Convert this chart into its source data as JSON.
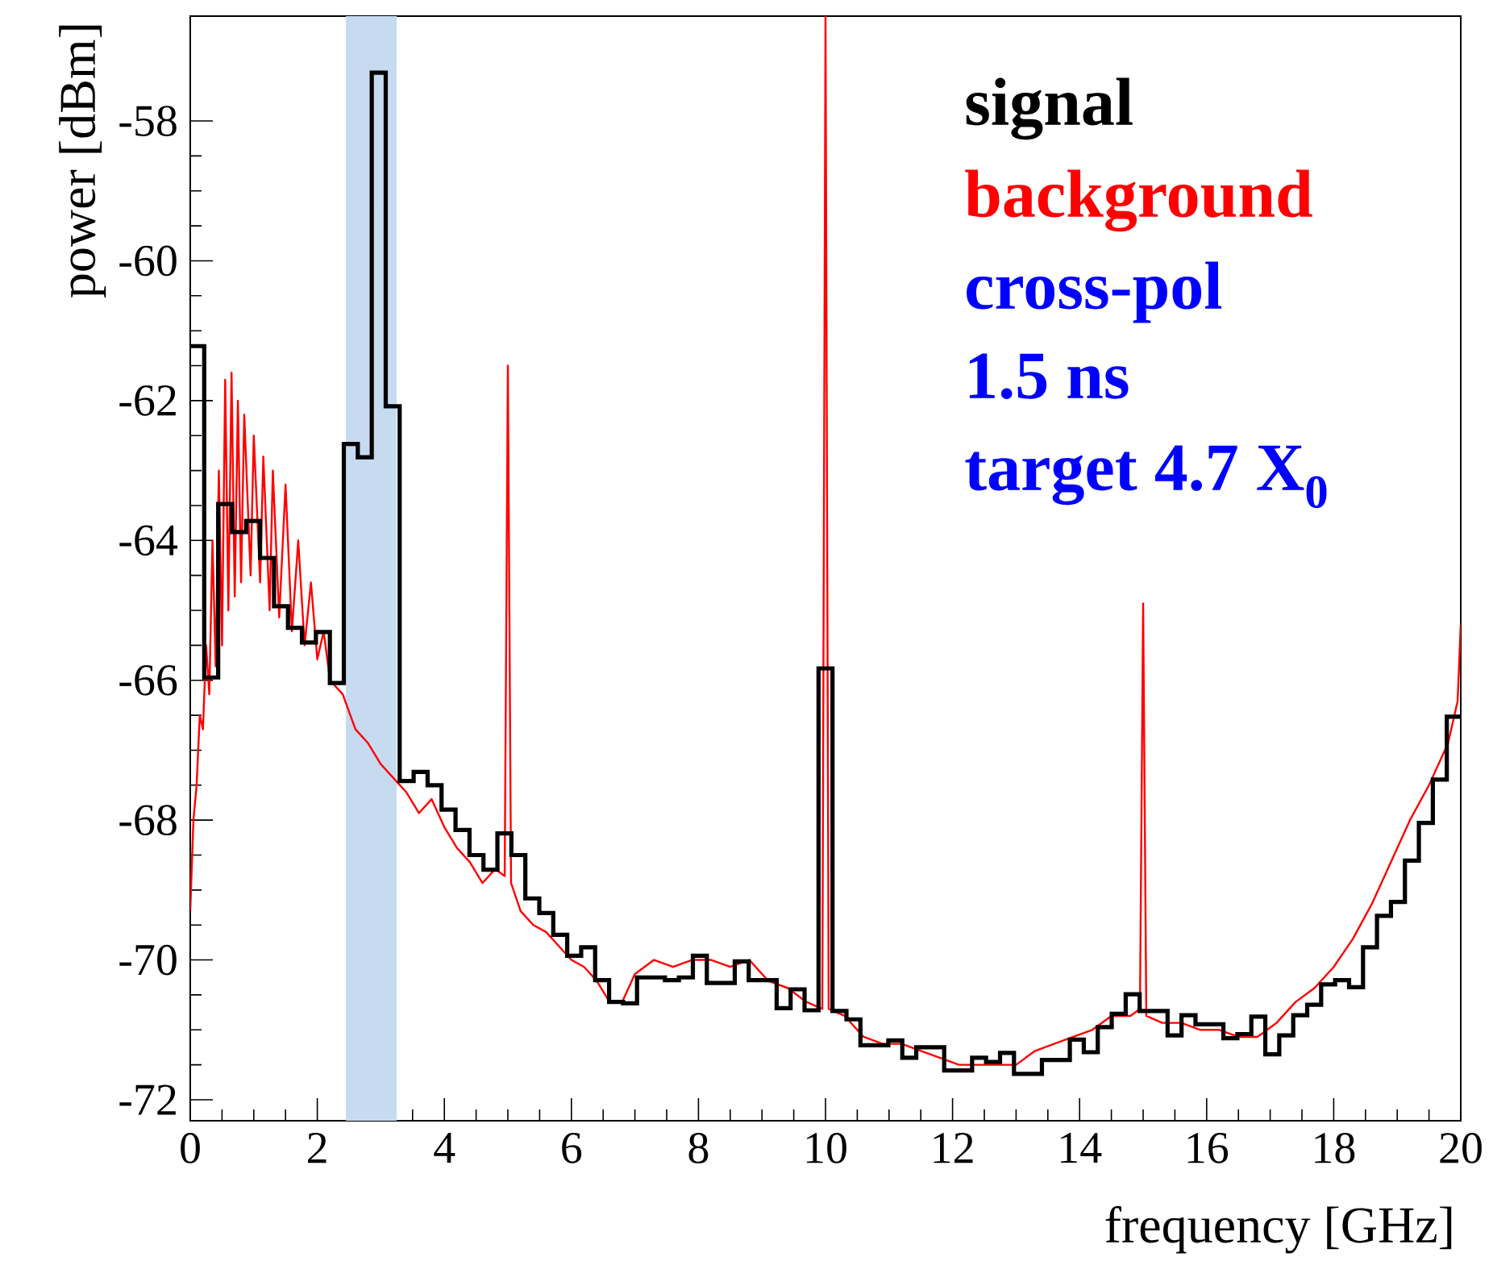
{
  "chart_data": {
    "type": "line",
    "xlabel": "frequency [GHz]",
    "ylabel": "power [dBm]",
    "xlim": [
      0,
      20
    ],
    "ylim": [
      -72.3,
      -56.5
    ],
    "xticks": [
      0,
      2,
      4,
      6,
      8,
      10,
      12,
      14,
      16,
      18,
      20
    ],
    "yticks": [
      -72,
      -70,
      -68,
      -66,
      -64,
      -62,
      -60,
      -58
    ],
    "legend": "top right",
    "bands": [
      {
        "axis": "x",
        "from": 2.45,
        "to": 3.25,
        "color": "#c6dbf0"
      }
    ],
    "annotations": [
      "cross-pol",
      "1.5 ns",
      "target 4.7 X$_{0}$"
    ],
    "series": [
      {
        "name": "signal",
        "type": "histogram",
        "color": "#000000",
        "bins": [
          0,
          0.2198,
          0.4396,
          0.6593,
          0.8791,
          1.0989,
          1.3187,
          1.5385,
          1.7582,
          1.978,
          2.1978,
          2.4176,
          2.6374,
          2.8571,
          3.0769,
          3.2967,
          3.5165,
          3.7363,
          3.956,
          4.1758,
          4.3956,
          4.6154,
          4.8352,
          5.0549,
          5.2747,
          5.4945,
          5.7143,
          5.9341,
          6.1538,
          6.3736,
          6.5934,
          6.8132,
          7.033,
          7.2527,
          7.4725,
          7.6923,
          7.9121,
          8.1319,
          8.3516,
          8.5714,
          8.7912,
          9.011,
          9.2308,
          9.4505,
          9.6703,
          9.8901,
          10.1099,
          10.3297,
          10.5495,
          10.7692,
          10.989,
          11.2088,
          11.4286,
          11.6484,
          11.8681,
          12.0879,
          12.3077,
          12.5275,
          12.7473,
          12.967,
          13.1868,
          13.4066,
          13.6264,
          13.8462,
          14.0659,
          14.2857,
          14.5055,
          14.7253,
          14.9451,
          15.1648,
          15.3846,
          15.6044,
          15.8242,
          16.044,
          16.2637,
          16.4835,
          16.7033,
          16.9231,
          17.1429,
          17.3626,
          17.5824,
          17.8022,
          18.022,
          18.2418,
          18.4615,
          18.6813,
          18.9011,
          19.1209,
          19.3407,
          19.5604,
          19.7802,
          20
        ],
        "values": [
          -61.22,
          -65.96,
          -63.48,
          -63.88,
          -63.72,
          -64.25,
          -64.94,
          -65.25,
          -65.46,
          -65.31,
          -66.04,
          -62.62,
          -62.81,
          -57.31,
          -62.08,
          -67.44,
          -67.31,
          -67.5,
          -67.85,
          -68.14,
          -68.5,
          -68.71,
          -68.19,
          -68.5,
          -69.12,
          -69.33,
          -69.64,
          -69.94,
          -69.82,
          -70.29,
          -70.6,
          -70.62,
          -70.25,
          -70.25,
          -70.29,
          -70.25,
          -69.94,
          -70.33,
          -70.33,
          -70.02,
          -70.29,
          -70.29,
          -70.69,
          -70.42,
          -70.72,
          -65.83,
          -70.73,
          -70.85,
          -71.22,
          -71.22,
          -71.15,
          -71.4,
          -71.25,
          -71.25,
          -71.58,
          -71.58,
          -71.4,
          -71.46,
          -71.33,
          -71.63,
          -71.63,
          -71.43,
          -71.43,
          -71.14,
          -71.32,
          -70.96,
          -70.77,
          -70.49,
          -70.73,
          -70.73,
          -71.08,
          -70.79,
          -70.92,
          -70.92,
          -71.12,
          -71.06,
          -70.81,
          -71.35,
          -71.08,
          -70.79,
          -70.64,
          -70.35,
          -70.29,
          -70.39,
          -69.82,
          -69.37,
          -69.17,
          -68.58,
          -68.04,
          -67.42,
          -66.52
        ]
      },
      {
        "name": "background",
        "color": "#ff0000",
        "x": [
          0.0,
          0.05,
          0.1,
          0.15,
          0.2,
          0.25,
          0.3,
          0.35,
          0.4,
          0.45,
          0.5,
          0.55,
          0.6,
          0.65,
          0.7,
          0.75,
          0.8,
          0.85,
          0.95,
          1.0,
          1.1,
          1.15,
          1.25,
          1.3,
          1.4,
          1.5,
          1.6,
          1.7,
          1.8,
          1.9,
          2.0,
          2.1,
          2.2,
          2.4,
          2.6,
          2.8,
          3.0,
          3.2,
          3.4,
          3.6,
          3.8,
          4.0,
          4.2,
          4.4,
          4.6,
          4.8,
          4.95,
          5.0,
          5.05,
          5.2,
          5.4,
          5.6,
          5.8,
          6.0,
          6.2,
          6.4,
          6.6,
          6.8,
          7.0,
          7.3,
          7.6,
          7.9,
          8.2,
          8.5,
          8.8,
          9.1,
          9.4,
          9.7,
          9.95,
          10.0,
          10.05,
          10.3,
          10.6,
          10.9,
          11.2,
          11.5,
          11.8,
          12.1,
          12.4,
          12.7,
          13.0,
          13.3,
          13.6,
          13.9,
          14.2,
          14.5,
          14.8,
          14.95,
          15.0,
          15.05,
          15.3,
          15.6,
          15.9,
          16.2,
          16.5,
          16.8,
          17.1,
          17.4,
          17.7,
          18.0,
          18.3,
          18.6,
          18.9,
          19.2,
          19.5,
          19.8,
          19.95,
          20.0
        ],
        "values": [
          -69.3,
          -68.0,
          -67.5,
          -66.5,
          -66.7,
          -65.5,
          -66.2,
          -64.0,
          -65.8,
          -63.0,
          -65.5,
          -61.7,
          -65.0,
          -61.6,
          -64.8,
          -62.0,
          -64.6,
          -62.2,
          -64.5,
          -62.5,
          -64.6,
          -62.8,
          -65.0,
          -63.0,
          -65.1,
          -63.2,
          -65.3,
          -64.0,
          -65.5,
          -64.6,
          -65.7,
          -65.3,
          -66.0,
          -66.2,
          -66.7,
          -66.9,
          -67.2,
          -67.4,
          -67.6,
          -67.9,
          -67.7,
          -68.1,
          -68.4,
          -68.6,
          -68.9,
          -68.7,
          -68.8,
          -61.5,
          -68.9,
          -69.3,
          -69.5,
          -69.6,
          -69.8,
          -70.0,
          -70.1,
          -70.3,
          -70.6,
          -70.6,
          -70.2,
          -70.0,
          -70.1,
          -70.0,
          -70.0,
          -70.1,
          -70.0,
          -70.3,
          -70.4,
          -70.6,
          -70.7,
          -56.5,
          -70.7,
          -70.8,
          -71.1,
          -71.2,
          -71.2,
          -71.3,
          -71.4,
          -71.5,
          -71.5,
          -71.5,
          -71.5,
          -71.3,
          -71.2,
          -71.1,
          -71.0,
          -70.8,
          -70.8,
          -70.7,
          -64.9,
          -70.8,
          -70.9,
          -70.9,
          -71.0,
          -71.0,
          -71.1,
          -71.1,
          -70.9,
          -70.6,
          -70.4,
          -70.1,
          -69.7,
          -69.2,
          -68.6,
          -68.0,
          -67.5,
          -66.9,
          -66.3,
          -65.2
        ]
      }
    ]
  }
}
